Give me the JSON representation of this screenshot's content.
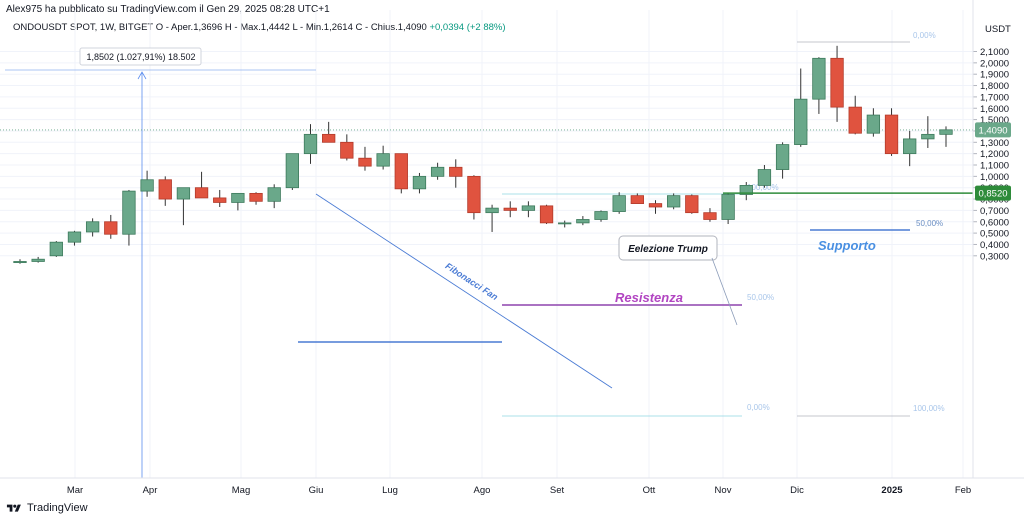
{
  "header": {
    "published": "Alex975 ha pubblicato su TradingView.com il Gen 29, 2025 08:28 UTC+1",
    "symbol": "ONDOUSDT SPOT, 1W, BITGET",
    "open": "O - Aper.1,3696",
    "high": "H - Max.1,4442",
    "low": "L - Min.1,2614",
    "close": "C - Chius.1,4090",
    "change": "+0,0394 (+2,88%)"
  },
  "footer": {
    "brand": "TradingView"
  },
  "colors": {
    "up": "#6aa88a",
    "down": "#e0533f",
    "grid": "#f0f3fa",
    "support_line": "#2e8b3a",
    "resistance_line": "#8e44ad",
    "fib_line": "#4a7bd4"
  },
  "chart_data": {
    "type": "candlestick",
    "currency": "USDT",
    "ylim": [
      0.23,
      2.2
    ],
    "y_ticks": [
      "0,3000",
      "0,4000",
      "0,5000",
      "0,6000",
      "0,7000",
      "0,8000",
      "0,9000",
      "1,0000",
      "1,1000",
      "1,2000",
      "1,3000",
      "1,4000",
      "1,5000",
      "1,6000",
      "1,7000",
      "1,8000",
      "1,9000",
      "2,0000",
      "2,1000"
    ],
    "x_tick_labels": [
      "Mar",
      "Apr",
      "Mag",
      "Giu",
      "Lug",
      "Ago",
      "Set",
      "Ott",
      "Nov",
      "Dic",
      "2025",
      "Feb"
    ],
    "candles": [
      {
        "o": 0.24,
        "h": 0.27,
        "l": 0.23,
        "c": 0.25
      },
      {
        "o": 0.25,
        "h": 0.29,
        "l": 0.24,
        "c": 0.27
      },
      {
        "o": 0.3,
        "h": 0.43,
        "l": 0.29,
        "c": 0.42
      },
      {
        "o": 0.42,
        "h": 0.52,
        "l": 0.39,
        "c": 0.51
      },
      {
        "o": 0.51,
        "h": 0.63,
        "l": 0.47,
        "c": 0.6
      },
      {
        "o": 0.6,
        "h": 0.66,
        "l": 0.45,
        "c": 0.49
      },
      {
        "o": 0.49,
        "h": 0.88,
        "l": 0.39,
        "c": 0.87
      },
      {
        "o": 0.87,
        "h": 1.05,
        "l": 0.82,
        "c": 0.97
      },
      {
        "o": 0.97,
        "h": 1.0,
        "l": 0.74,
        "c": 0.8
      },
      {
        "o": 0.8,
        "h": 0.9,
        "l": 0.57,
        "c": 0.9
      },
      {
        "o": 0.9,
        "h": 1.04,
        "l": 0.82,
        "c": 0.81
      },
      {
        "o": 0.81,
        "h": 0.88,
        "l": 0.73,
        "c": 0.77
      },
      {
        "o": 0.77,
        "h": 0.85,
        "l": 0.7,
        "c": 0.85
      },
      {
        "o": 0.85,
        "h": 0.86,
        "l": 0.75,
        "c": 0.78
      },
      {
        "o": 0.78,
        "h": 0.93,
        "l": 0.72,
        "c": 0.9
      },
      {
        "o": 0.9,
        "h": 1.2,
        "l": 0.88,
        "c": 1.2
      },
      {
        "o": 1.2,
        "h": 1.46,
        "l": 1.11,
        "c": 1.37
      },
      {
        "o": 1.37,
        "h": 1.48,
        "l": 1.31,
        "c": 1.3
      },
      {
        "o": 1.3,
        "h": 1.37,
        "l": 1.14,
        "c": 1.16
      },
      {
        "o": 1.16,
        "h": 1.26,
        "l": 1.05,
        "c": 1.09
      },
      {
        "o": 1.09,
        "h": 1.27,
        "l": 1.06,
        "c": 1.2
      },
      {
        "o": 1.2,
        "h": 1.2,
        "l": 0.85,
        "c": 0.89
      },
      {
        "o": 0.89,
        "h": 1.03,
        "l": 0.85,
        "c": 1.0
      },
      {
        "o": 1.0,
        "h": 1.12,
        "l": 0.97,
        "c": 1.08
      },
      {
        "o": 1.08,
        "h": 1.15,
        "l": 0.9,
        "c": 1.0
      },
      {
        "o": 1.0,
        "h": 1.01,
        "l": 0.62,
        "c": 0.68
      },
      {
        "o": 0.68,
        "h": 0.75,
        "l": 0.51,
        "c": 0.72
      },
      {
        "o": 0.72,
        "h": 0.78,
        "l": 0.64,
        "c": 0.7
      },
      {
        "o": 0.7,
        "h": 0.78,
        "l": 0.64,
        "c": 0.74
      },
      {
        "o": 0.74,
        "h": 0.75,
        "l": 0.58,
        "c": 0.59
      },
      {
        "o": 0.59,
        "h": 0.61,
        "l": 0.55,
        "c": 0.59
      },
      {
        "o": 0.59,
        "h": 0.65,
        "l": 0.57,
        "c": 0.62
      },
      {
        "o": 0.62,
        "h": 0.7,
        "l": 0.6,
        "c": 0.69
      },
      {
        "o": 0.69,
        "h": 0.86,
        "l": 0.67,
        "c": 0.83
      },
      {
        "o": 0.83,
        "h": 0.85,
        "l": 0.76,
        "c": 0.76
      },
      {
        "o": 0.76,
        "h": 0.79,
        "l": 0.67,
        "c": 0.73
      },
      {
        "o": 0.73,
        "h": 0.85,
        "l": 0.71,
        "c": 0.83
      },
      {
        "o": 0.83,
        "h": 0.84,
        "l": 0.67,
        "c": 0.68
      },
      {
        "o": 0.68,
        "h": 0.72,
        "l": 0.6,
        "c": 0.62
      },
      {
        "o": 0.62,
        "h": 0.85,
        "l": 0.58,
        "c": 0.84
      },
      {
        "o": 0.84,
        "h": 0.95,
        "l": 0.79,
        "c": 0.92
      },
      {
        "o": 0.92,
        "h": 1.1,
        "l": 0.9,
        "c": 1.06
      },
      {
        "o": 1.06,
        "h": 1.3,
        "l": 0.98,
        "c": 1.28
      },
      {
        "o": 1.28,
        "h": 1.95,
        "l": 1.26,
        "c": 1.68
      },
      {
        "o": 1.68,
        "h": 2.05,
        "l": 1.55,
        "c": 2.04
      },
      {
        "o": 2.04,
        "h": 2.15,
        "l": 1.48,
        "c": 1.61
      },
      {
        "o": 1.61,
        "h": 1.71,
        "l": 1.37,
        "c": 1.38
      },
      {
        "o": 1.38,
        "h": 1.6,
        "l": 1.35,
        "c": 1.54
      },
      {
        "o": 1.54,
        "h": 1.6,
        "l": 1.18,
        "c": 1.2
      },
      {
        "o": 1.2,
        "h": 1.4,
        "l": 1.09,
        "c": 1.33
      },
      {
        "o": 1.33,
        "h": 1.53,
        "l": 1.25,
        "c": 1.37
      },
      {
        "o": 1.37,
        "h": 1.44,
        "l": 1.26,
        "c": 1.41
      }
    ],
    "price_labels": {
      "last": "1,4090",
      "support": "0,8520"
    },
    "annotations": {
      "measure": "1,8502 (1.027,91%) 18.502",
      "fib_fan": "Fibonacci Fan",
      "resistance": "Resistenza",
      "support": "Supporto",
      "trump": "Eelezione Trump",
      "fib_levels": {
        "l0_top": "0,00%",
        "l100_mid": "100,00%",
        "l50_mid": "50,00%",
        "l0_low": "0,00%",
        "l100_low": "100,00%",
        "l50_right": "50,00%"
      }
    }
  }
}
